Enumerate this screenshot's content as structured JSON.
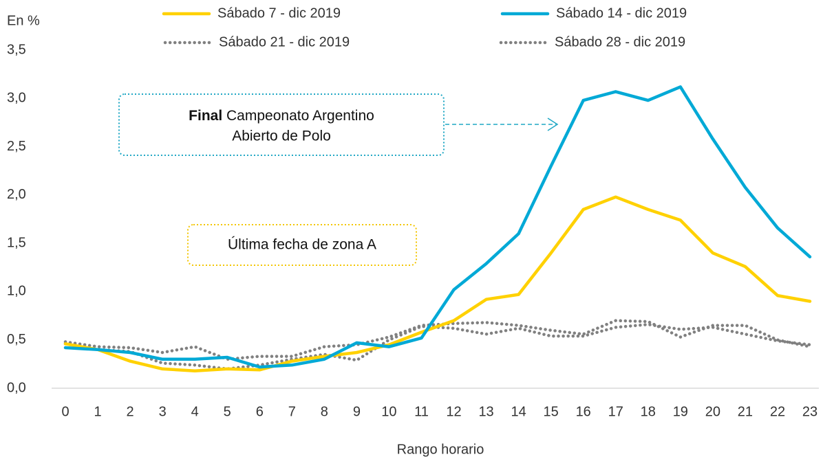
{
  "chart_data": {
    "type": "line",
    "y_label": "En %",
    "x_label": "Rango horario",
    "categories": [
      "0",
      "1",
      "2",
      "3",
      "4",
      "5",
      "6",
      "7",
      "8",
      "9",
      "10",
      "11",
      "12",
      "13",
      "14",
      "15",
      "16",
      "17",
      "18",
      "19",
      "20",
      "21",
      "22",
      "23"
    ],
    "series": [
      {
        "name": "Sábado 7 - dic 2019",
        "color": "#ffd100",
        "line_style": "solid",
        "values": [
          0.46,
          0.4,
          0.28,
          0.2,
          0.18,
          0.2,
          0.19,
          0.28,
          0.33,
          0.37,
          0.45,
          0.58,
          0.7,
          0.92,
          0.97,
          1.4,
          1.85,
          1.98,
          1.85,
          1.74,
          1.4,
          1.26,
          0.96,
          0.9
        ]
      },
      {
        "name": "Sábado 14 - dic 2019",
        "color": "#00a9d6",
        "line_style": "solid",
        "values": [
          0.42,
          0.4,
          0.37,
          0.3,
          0.3,
          0.32,
          0.22,
          0.24,
          0.3,
          0.47,
          0.43,
          0.52,
          1.02,
          1.29,
          1.6,
          2.3,
          2.98,
          3.07,
          2.98,
          3.12,
          2.58,
          2.08,
          1.66,
          1.36
        ]
      },
      {
        "name": "Sábado 21 - dic 2019",
        "color": "#808080",
        "line_style": "dotted",
        "values": [
          0.48,
          0.43,
          0.42,
          0.37,
          0.43,
          0.3,
          0.33,
          0.33,
          0.43,
          0.45,
          0.53,
          0.65,
          0.67,
          0.68,
          0.65,
          0.6,
          0.56,
          0.7,
          0.69,
          0.53,
          0.65,
          0.65,
          0.5,
          0.43
        ]
      },
      {
        "name": "Sábado 28 - dic 2019",
        "color": "#808080",
        "line_style": "dotted",
        "values": [
          0.46,
          0.4,
          0.38,
          0.26,
          0.24,
          0.2,
          0.24,
          0.3,
          0.35,
          0.29,
          0.5,
          0.64,
          0.62,
          0.56,
          0.62,
          0.54,
          0.54,
          0.63,
          0.66,
          0.61,
          0.63,
          0.56,
          0.49,
          0.45
        ]
      }
    ],
    "ylim": [
      0,
      3.5
    ],
    "yticks": [
      {
        "value": 0,
        "label": "0,0"
      },
      {
        "value": 0.5,
        "label": "0,5"
      },
      {
        "value": 1,
        "label": "1,0"
      },
      {
        "value": 1.5,
        "label": "1,5"
      },
      {
        "value": 2,
        "label": "2,0"
      },
      {
        "value": 2.5,
        "label": "2,5"
      },
      {
        "value": 3,
        "label": "3,0"
      },
      {
        "value": 3.5,
        "label": "3,5"
      }
    ],
    "annotations": [
      {
        "bold": "Final",
        "lines": [
          "Campeonato Argentino",
          "Abierto de Polo"
        ]
      },
      {
        "text": "Última fecha de zona A"
      }
    ]
  }
}
